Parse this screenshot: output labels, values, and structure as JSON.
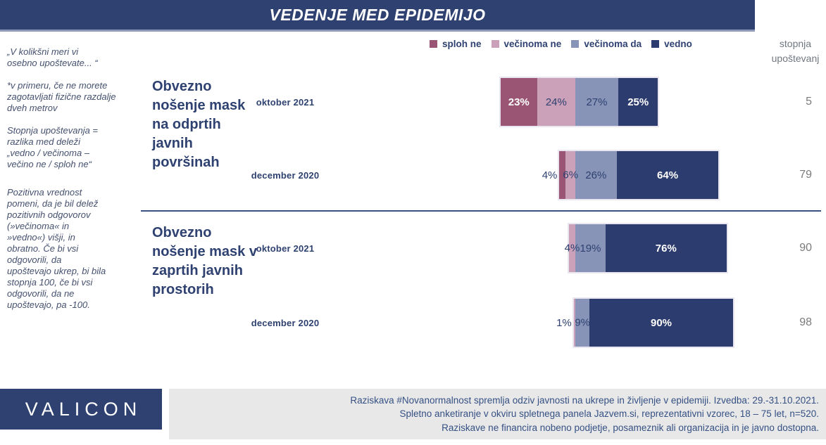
{
  "header": {
    "title": "VEDENJE MED EPIDEMIJO"
  },
  "right_axis": {
    "line1": "stopnja",
    "line2": "upoštevanj"
  },
  "sidebar": {
    "p1": "„V kolikšni meri vi\nosebno upoštevate... “",
    "p2": "*v primeru, če ne morete\nzagotavljati fizične razdalje\ndveh metrov",
    "p3": "Stopnja upoštevanja =\nrazlika med deleži\n„vedno / večinoma –\nvečino ne / sploh ne“",
    "p4": "Pozitivna vrednost\npomeni, da je bil delež\npozitivnih odgovorov\n(»večinoma« in\n»vedno«) višji, in\nobratno. Če bi vsi\nodgovorili, da\nupoštevajo ukrep, bi bila\nstopnja 100, če bi vsi\nodgovorili, da ne\nupoštevajo, pa -100."
  },
  "chart_data": {
    "type": "bar",
    "variant": "diverging_stacked_horizontal",
    "title": "VEDENJE MED EPIDEMIJO",
    "categories": [
      "sploh ne",
      "večinoma ne",
      "večinoma da",
      "vedno"
    ],
    "colors": [
      "#9A5574",
      "#CBA0B9",
      "#8794B8",
      "#2D3C6E"
    ],
    "label_colors": [
      "#FFFFFF",
      "#2E4170",
      "#2E4170",
      "#FFFFFF"
    ],
    "right_axis_header": "stopnja upoštevanj",
    "legend_position": "top",
    "unit": "%",
    "groups": [
      {
        "label": "Obvezno nošenje mask na odprtih javnih površinah",
        "rows": [
          {
            "label": "oktober 2021",
            "values": [
              23,
              24,
              27,
              25
            ],
            "score": 5
          },
          {
            "label": "december 2020",
            "values": [
              4,
              6,
              26,
              64
            ],
            "score": 79
          }
        ]
      },
      {
        "label": "Obvezno nošenje mask v zaprtih javnih prostorih",
        "rows": [
          {
            "label": "oktober 2021",
            "values": [
              0,
              4,
              19,
              76
            ],
            "score": 90
          },
          {
            "label": "december 2020",
            "values": [
              0,
              1,
              9,
              90
            ],
            "score": 98
          }
        ]
      }
    ]
  },
  "footer": {
    "logo": "VALICON",
    "line1": "Raziskava #Novanormalnost spremlja odziv javnosti na ukrepe in življenje v epidemiji. Izvedba: 29.-31.10.2021.",
    "line2": "Spletno anketiranje v okviru spletnega panela Jazvem.si, reprezentativni vzorec,  18 – 75 let, n=520.",
    "line3": "Raziskave ne financira nobeno podjetje, posameznik ali organizacija in je javno dostopna."
  },
  "colors": {
    "header_navy": "#2E4170",
    "bar_navy": "#2D3C6E",
    "maroon": "#9A5574",
    "pink": "#CBA0B9",
    "bluegray": "#8794B8",
    "score_gray": "#7B7B7B",
    "footer_bg": "#E8E8E8"
  }
}
